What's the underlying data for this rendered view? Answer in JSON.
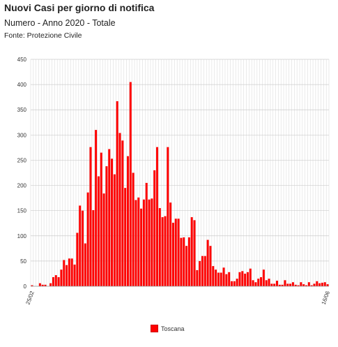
{
  "header": {
    "title": "Nuovi Casi per giorno di notifica",
    "subtitle": "Numero - Anno 2020 - Totale",
    "source": "Fonte: Protezione Civile"
  },
  "chart_data": {
    "type": "bar",
    "x_start": "25/02",
    "x_end": "16/06",
    "ylim": [
      0,
      450
    ],
    "yticks": [
      0,
      50,
      100,
      150,
      200,
      250,
      300,
      350,
      400,
      450
    ],
    "grid": true,
    "legend_position": "bottom",
    "series": [
      {
        "name": "Toscana",
        "color": "#ff0000",
        "values": [
          2,
          0,
          0,
          6,
          3,
          3,
          0,
          6,
          18,
          22,
          18,
          33,
          52,
          42,
          55,
          55,
          43,
          106,
          160,
          150,
          85,
          186,
          276,
          151,
          310,
          218,
          265,
          184,
          238,
          272,
          253,
          222,
          367,
          304,
          289,
          195,
          258,
          405,
          225,
          171,
          176,
          154,
          172,
          205,
          172,
          174,
          230,
          276,
          155,
          137,
          139,
          276,
          166,
          126,
          134,
          134,
          96,
          97,
          80,
          97,
          137,
          131,
          32,
          50,
          60,
          60,
          92,
          80,
          40,
          33,
          27,
          27,
          37,
          24,
          28,
          10,
          10,
          15,
          28,
          30,
          25,
          28,
          35,
          12,
          8,
          15,
          18,
          33,
          12,
          15,
          5,
          5,
          11,
          3,
          3,
          12,
          5,
          5,
          8,
          3,
          2,
          8,
          4,
          2,
          8,
          2,
          5,
          10,
          6,
          7,
          8,
          4
        ]
      }
    ]
  }
}
